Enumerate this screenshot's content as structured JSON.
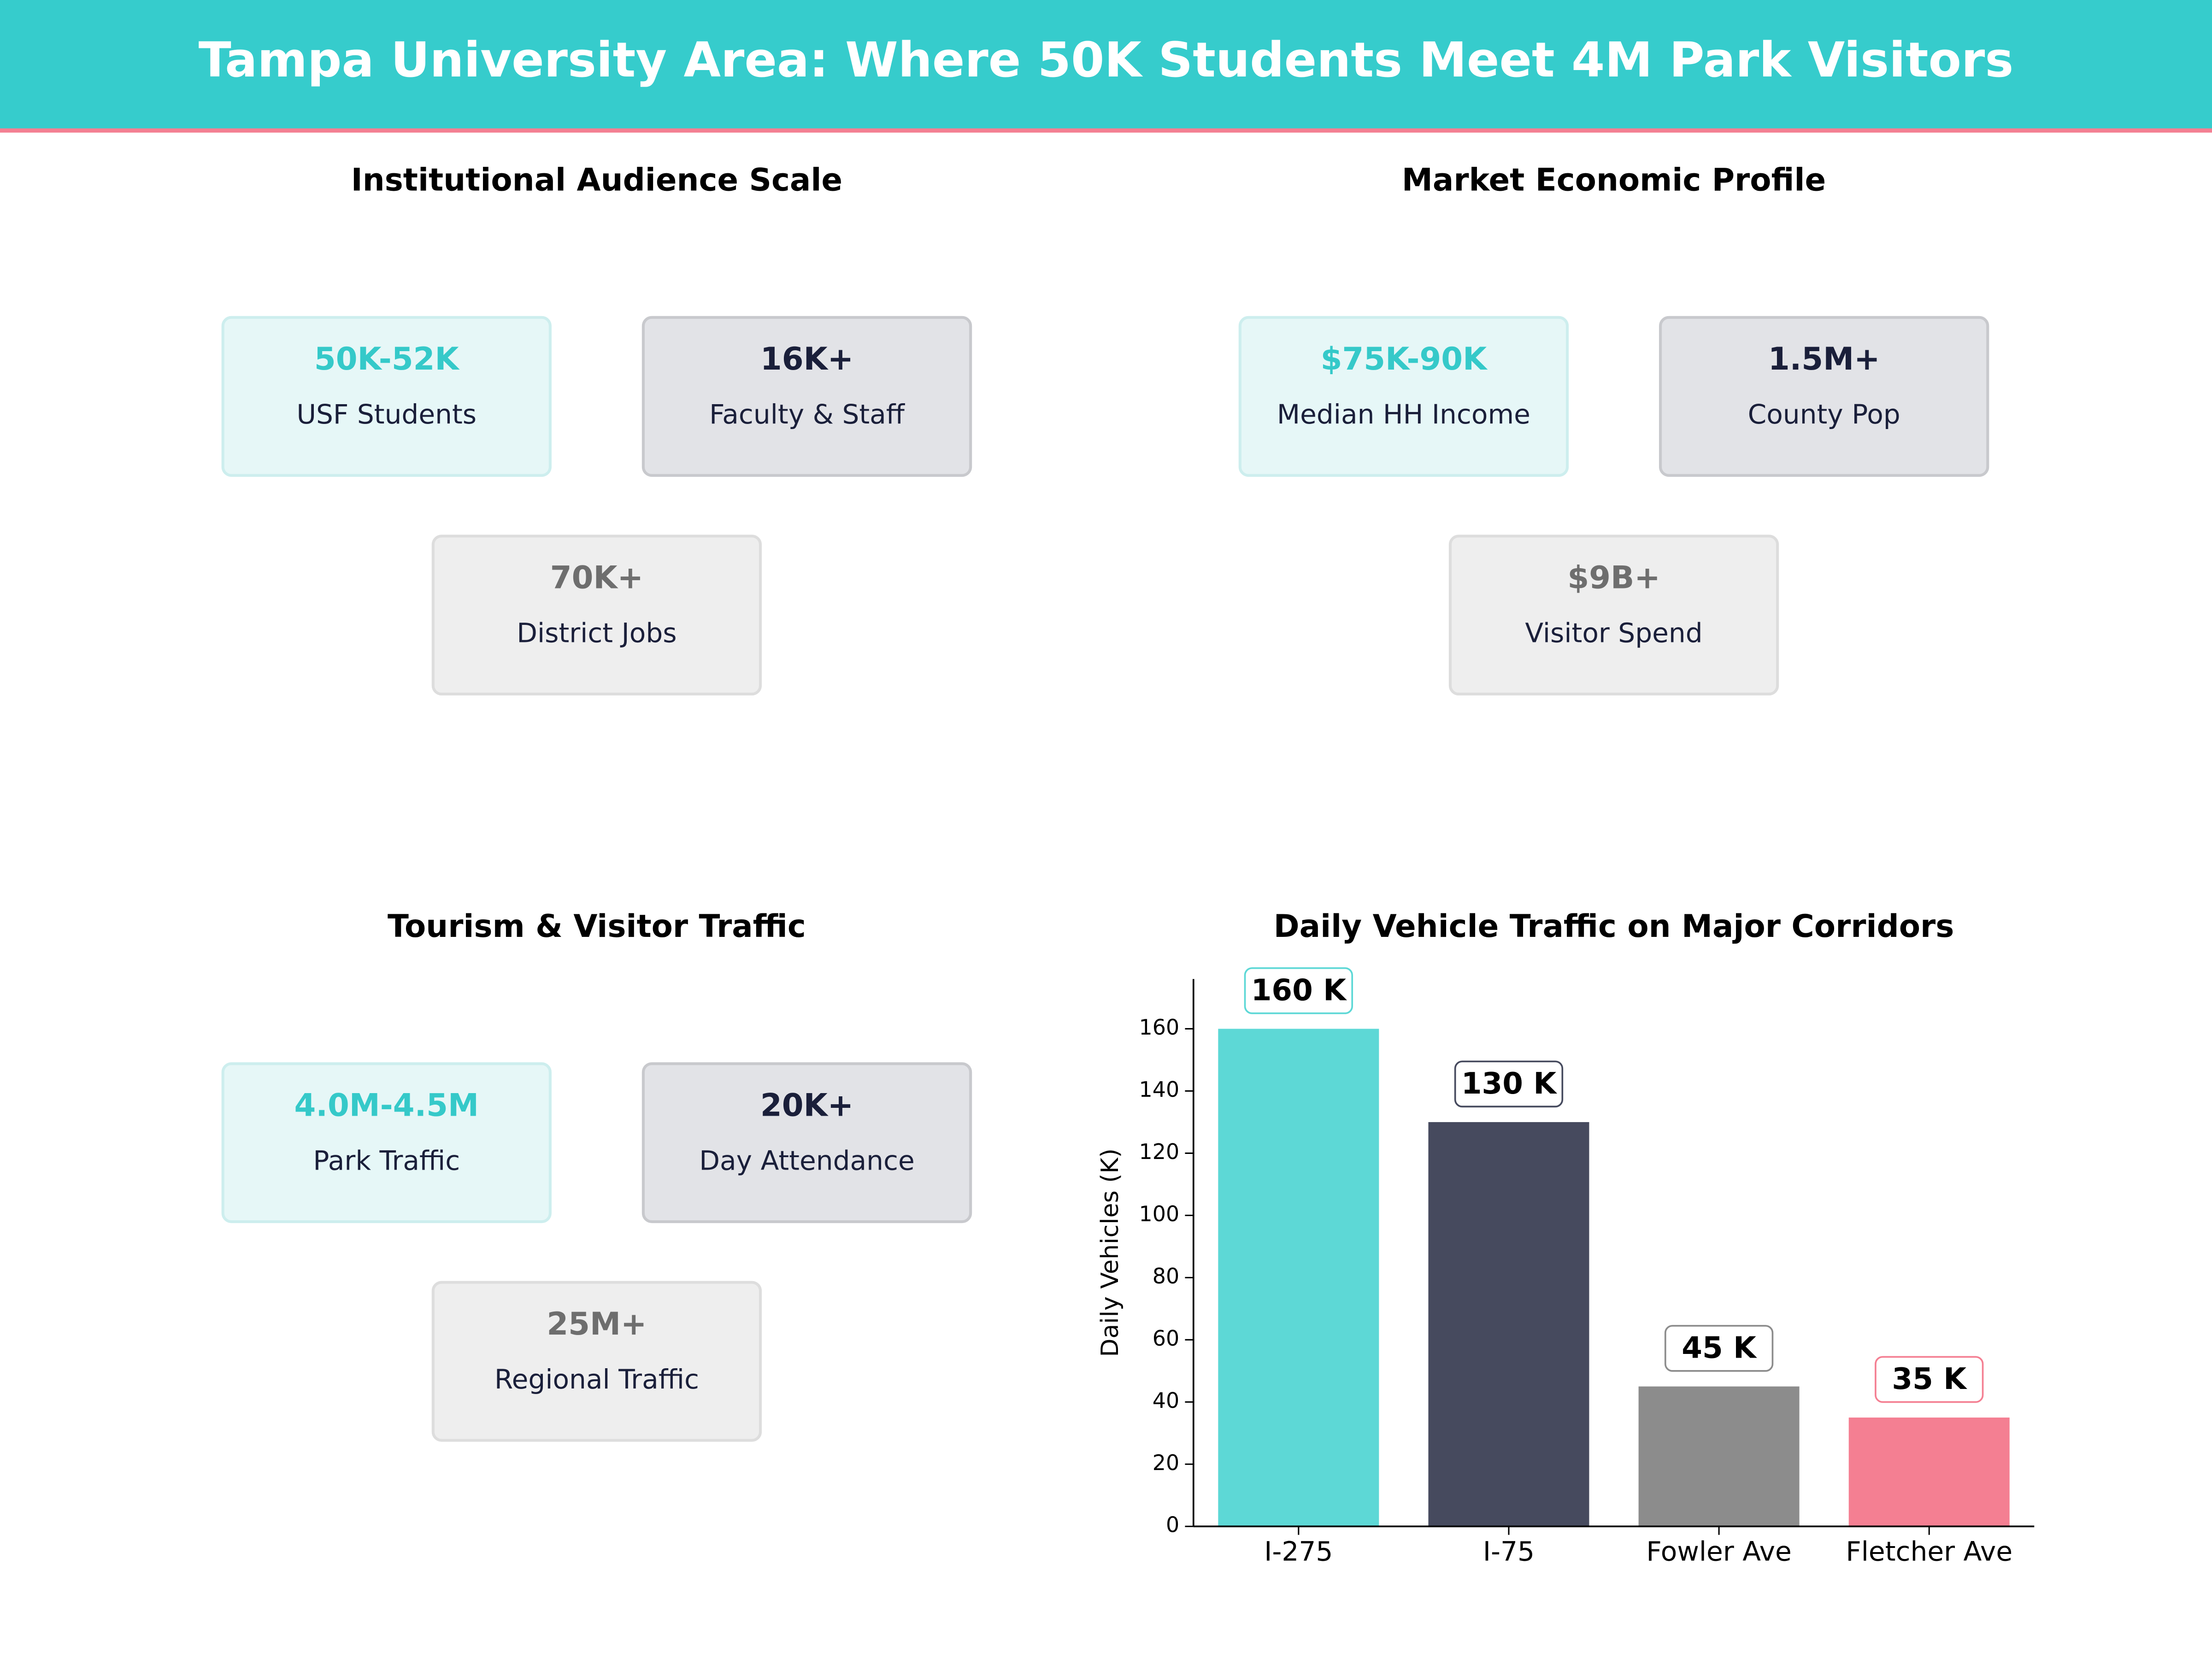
{
  "header": {
    "title": "Tampa University Area: Where 50K Students Meet 4M Park Visitors"
  },
  "panels": [
    {
      "title": "Institutional Audience Scale",
      "cards": [
        {
          "value": "50K-52K",
          "label": "USF Students"
        },
        {
          "value": "16K+",
          "label": "Faculty & Staff"
        },
        {
          "value": "70K+",
          "label": "District Jobs"
        }
      ]
    },
    {
      "title": "Market Economic Profile",
      "cards": [
        {
          "value": "$75K-90K",
          "label": "Median HH Income"
        },
        {
          "value": "1.5M+",
          "label": "County Pop"
        },
        {
          "value": "$9B+",
          "label": "Visitor Spend"
        }
      ]
    },
    {
      "title": "Tourism & Visitor Traffic",
      "cards": [
        {
          "value": "4.0M-4.5M",
          "label": "Park Traffic"
        },
        {
          "value": "20K+",
          "label": "Day Attendance"
        },
        {
          "value": "25M+",
          "label": "Regional Traffic"
        }
      ]
    }
  ],
  "chart_data": {
    "type": "bar",
    "title": "Daily Vehicle Traffic on Major Corridors",
    "y_label": "Daily Vehicles (K)",
    "categories": [
      "I-275",
      "I-75",
      "Fowler Ave",
      "Fletcher Ave"
    ],
    "values": [
      160,
      130,
      45,
      35
    ],
    "value_labels": [
      "160 K",
      "130 K",
      "45 K",
      "35 K"
    ],
    "colors": [
      "#5dd8d6",
      "#464a5e",
      "#8c8c8c",
      "#f47f92"
    ],
    "ylim": [
      0,
      176
    ],
    "yticks": [
      0,
      20,
      40,
      60,
      80,
      100,
      120,
      140,
      160
    ]
  }
}
